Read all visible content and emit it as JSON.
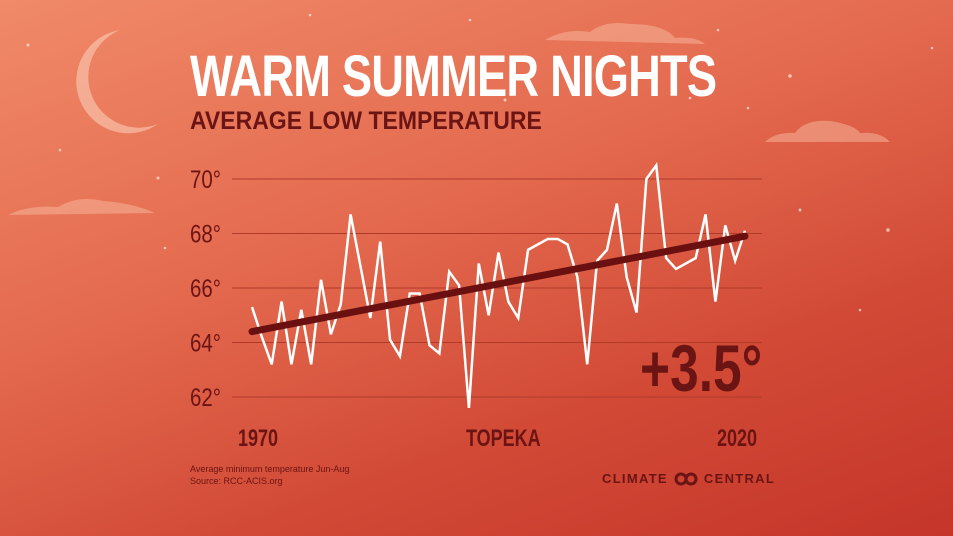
{
  "title": "WARM SUMMER NIGHTS",
  "subtitle": "AVERAGE LOW TEMPERATURE",
  "location": "TOPEKA",
  "change_label": "+3.5°",
  "footnote_line1": "Average minimum temperature Jun-Aug",
  "footnote_line2": "Source: RCC-ACIS.org",
  "logo_left": "CLIMATE",
  "logo_right": "CENTRAL",
  "colors": {
    "line": "#ffffff",
    "trend": "#6b1010",
    "text": "#6b1414",
    "grid": "#b03a2a"
  },
  "chart_data": {
    "type": "line",
    "title": "WARM SUMMER NIGHTS",
    "subtitle": "AVERAGE LOW TEMPERATURE",
    "x_tick_labels": [
      "1970",
      "2020"
    ],
    "y_ticks": [
      62,
      64,
      66,
      68,
      70
    ],
    "y_tick_labels": [
      "62°",
      "64°",
      "66°",
      "68°",
      "70°"
    ],
    "xlim": [
      1970,
      2020
    ],
    "ylim": [
      62,
      70
    ],
    "grid": true,
    "x": [
      1970,
      1971,
      1972,
      1973,
      1974,
      1975,
      1976,
      1977,
      1978,
      1979,
      1980,
      1981,
      1982,
      1983,
      1984,
      1985,
      1986,
      1987,
      1988,
      1989,
      1990,
      1991,
      1992,
      1993,
      1994,
      1995,
      1996,
      1997,
      1998,
      1999,
      2000,
      2001,
      2002,
      2003,
      2004,
      2005,
      2006,
      2007,
      2008,
      2009,
      2010,
      2011,
      2012,
      2013,
      2014,
      2015,
      2016,
      2017,
      2018,
      2019,
      2020
    ],
    "series": [
      {
        "values": [
          65.3,
          64.2,
          63.2,
          65.5,
          63.2,
          65.2,
          63.2,
          66.3,
          64.3,
          65.4,
          68.7,
          66.8,
          64.9,
          67.7,
          64.1,
          63.5,
          65.8,
          65.8,
          63.9,
          63.6,
          66.6,
          66.1,
          61.6,
          66.9,
          65.0,
          67.3,
          65.5,
          64.9,
          67.4,
          67.6,
          67.8,
          67.8,
          67.6,
          66.4,
          63.2,
          67.0,
          67.4,
          69.1,
          66.4,
          65.1,
          70.0,
          70.5,
          67.1,
          66.7,
          66.9,
          67.1,
          68.7,
          65.5,
          68.3,
          67.0,
          68.1
        ]
      },
      {
        "type": "trend",
        "values_at_ends": [
          64.4,
          67.9
        ]
      }
    ],
    "annotation": "+3.5°"
  }
}
